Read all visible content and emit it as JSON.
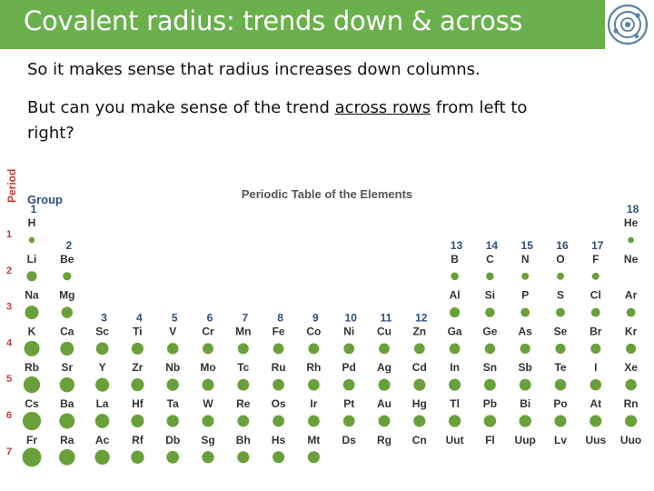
{
  "slide": {
    "title": "Covalent radius: trends down & across",
    "line1": "So it makes sense that radius increases down columns.",
    "line2_before": "But can you make sense of the trend ",
    "line2_underlined": "across rows",
    "line2_after": " from left to",
    "line3": "right?",
    "logo_icon": "atom-orbit-icon"
  },
  "periodic_table": {
    "title": "Periodic Table of the Elements",
    "period_axis_label": "Period",
    "group_axis_label": "Group",
    "period_numbers": [
      "1",
      "2",
      "3",
      "4",
      "5",
      "6",
      "7"
    ],
    "group_numbers": [
      "1",
      "2",
      "3",
      "4",
      "5",
      "6",
      "7",
      "8",
      "9",
      "10",
      "11",
      "12",
      "13",
      "14",
      "15",
      "16",
      "17",
      "18"
    ],
    "dot_color": "#6aa03a",
    "group_label_color": "#2e4f7e",
    "elements": [
      {
        "symbol": "H",
        "group": 1,
        "period": 1,
        "size": 0.2
      },
      {
        "symbol": "He",
        "group": 18,
        "period": 1,
        "size": 0.2
      },
      {
        "symbol": "Li",
        "group": 1,
        "period": 2,
        "size": 0.55
      },
      {
        "symbol": "Be",
        "group": 2,
        "period": 2,
        "size": 0.4
      },
      {
        "symbol": "B",
        "group": 13,
        "period": 2,
        "size": 0.35
      },
      {
        "symbol": "C",
        "group": 14,
        "period": 2,
        "size": 0.35
      },
      {
        "symbol": "N",
        "group": 15,
        "period": 2,
        "size": 0.3
      },
      {
        "symbol": "O",
        "group": 16,
        "period": 2,
        "size": 0.3
      },
      {
        "symbol": "F",
        "group": 17,
        "period": 2,
        "size": 0.3
      },
      {
        "symbol": "Ne",
        "group": 18,
        "period": 2,
        "size": 0
      },
      {
        "symbol": "Na",
        "group": 1,
        "period": 3,
        "size": 0.85
      },
      {
        "symbol": "Mg",
        "group": 2,
        "period": 3,
        "size": 0.65
      },
      {
        "symbol": "Al",
        "group": 13,
        "period": 3,
        "size": 0.55
      },
      {
        "symbol": "Si",
        "group": 14,
        "period": 3,
        "size": 0.5
      },
      {
        "symbol": "P",
        "group": 15,
        "period": 3,
        "size": 0.45
      },
      {
        "symbol": "S",
        "group": 16,
        "period": 3,
        "size": 0.45
      },
      {
        "symbol": "Cl",
        "group": 17,
        "period": 3,
        "size": 0.45
      },
      {
        "symbol": "Ar",
        "group": 18,
        "period": 3,
        "size": 0.45
      },
      {
        "symbol": "K",
        "group": 1,
        "period": 4,
        "size": 1.0
      },
      {
        "symbol": "Ca",
        "group": 2,
        "period": 4,
        "size": 0.85
      },
      {
        "symbol": "Sc",
        "group": 3,
        "period": 4,
        "size": 0.75
      },
      {
        "symbol": "Ti",
        "group": 4,
        "period": 4,
        "size": 0.7
      },
      {
        "symbol": "V",
        "group": 5,
        "period": 4,
        "size": 0.65
      },
      {
        "symbol": "Cr",
        "group": 6,
        "period": 4,
        "size": 0.62
      },
      {
        "symbol": "Mn",
        "group": 7,
        "period": 4,
        "size": 0.62
      },
      {
        "symbol": "Fe",
        "group": 8,
        "period": 4,
        "size": 0.6
      },
      {
        "symbol": "Co",
        "group": 9,
        "period": 4,
        "size": 0.6
      },
      {
        "symbol": "Ni",
        "group": 10,
        "period": 4,
        "size": 0.6
      },
      {
        "symbol": "Cu",
        "group": 11,
        "period": 4,
        "size": 0.6
      },
      {
        "symbol": "Zn",
        "group": 12,
        "period": 4,
        "size": 0.6
      },
      {
        "symbol": "Ga",
        "group": 13,
        "period": 4,
        "size": 0.6
      },
      {
        "symbol": "Ge",
        "group": 14,
        "period": 4,
        "size": 0.58
      },
      {
        "symbol": "As",
        "group": 15,
        "period": 4,
        "size": 0.55
      },
      {
        "symbol": "Se",
        "group": 16,
        "period": 4,
        "size": 0.55
      },
      {
        "symbol": "Br",
        "group": 17,
        "period": 4,
        "size": 0.55
      },
      {
        "symbol": "Kr",
        "group": 18,
        "period": 4,
        "size": 0.55
      },
      {
        "symbol": "Rb",
        "group": 1,
        "period": 5,
        "size": 1.1
      },
      {
        "symbol": "Sr",
        "group": 2,
        "period": 5,
        "size": 0.95
      },
      {
        "symbol": "Y",
        "group": 3,
        "period": 5,
        "size": 0.85
      },
      {
        "symbol": "Zr",
        "group": 4,
        "period": 5,
        "size": 0.78
      },
      {
        "symbol": "Nb",
        "group": 5,
        "period": 5,
        "size": 0.72
      },
      {
        "symbol": "Mo",
        "group": 6,
        "period": 5,
        "size": 0.7
      },
      {
        "symbol": "Tc",
        "group": 7,
        "period": 5,
        "size": 0.68
      },
      {
        "symbol": "Ru",
        "group": 8,
        "period": 5,
        "size": 0.67
      },
      {
        "symbol": "Rh",
        "group": 9,
        "period": 5,
        "size": 0.67
      },
      {
        "symbol": "Pd",
        "group": 10,
        "period": 5,
        "size": 0.67
      },
      {
        "symbol": "Ag",
        "group": 11,
        "period": 5,
        "size": 0.7
      },
      {
        "symbol": "Cd",
        "group": 12,
        "period": 5,
        "size": 0.7
      },
      {
        "symbol": "In",
        "group": 13,
        "period": 5,
        "size": 0.7
      },
      {
        "symbol": "Sn",
        "group": 14,
        "period": 5,
        "size": 0.68
      },
      {
        "symbol": "Sb",
        "group": 15,
        "period": 5,
        "size": 0.68
      },
      {
        "symbol": "Te",
        "group": 16,
        "period": 5,
        "size": 0.66
      },
      {
        "symbol": "I",
        "group": 17,
        "period": 5,
        "size": 0.65
      },
      {
        "symbol": "Xe",
        "group": 18,
        "period": 5,
        "size": 0.65
      },
      {
        "symbol": "Cs",
        "group": 1,
        "period": 6,
        "size": 1.25
      },
      {
        "symbol": "Ba",
        "group": 2,
        "period": 6,
        "size": 1.0
      },
      {
        "symbol": "La",
        "group": 3,
        "period": 6,
        "size": 0.9
      },
      {
        "symbol": "Hf",
        "group": 4,
        "period": 6,
        "size": 0.78
      },
      {
        "symbol": "Ta",
        "group": 5,
        "period": 6,
        "size": 0.72
      },
      {
        "symbol": "W",
        "group": 6,
        "period": 6,
        "size": 0.7
      },
      {
        "symbol": "Re",
        "group": 7,
        "period": 6,
        "size": 0.68
      },
      {
        "symbol": "Os",
        "group": 8,
        "period": 6,
        "size": 0.67
      },
      {
        "symbol": "Ir",
        "group": 9,
        "period": 6,
        "size": 0.67
      },
      {
        "symbol": "Pt",
        "group": 10,
        "period": 6,
        "size": 0.67
      },
      {
        "symbol": "Au",
        "group": 11,
        "period": 6,
        "size": 0.68
      },
      {
        "symbol": "Hg",
        "group": 12,
        "period": 6,
        "size": 0.7
      },
      {
        "symbol": "Tl",
        "group": 13,
        "period": 6,
        "size": 0.72
      },
      {
        "symbol": "Pb",
        "group": 14,
        "period": 6,
        "size": 0.72
      },
      {
        "symbol": "Bi",
        "group": 15,
        "period": 6,
        "size": 0.72
      },
      {
        "symbol": "Po",
        "group": 16,
        "period": 6,
        "size": 0.7
      },
      {
        "symbol": "At",
        "group": 17,
        "period": 6,
        "size": 0.7
      },
      {
        "symbol": "Rn",
        "group": 18,
        "period": 6,
        "size": 0.7
      },
      {
        "symbol": "Fr",
        "group": 1,
        "period": 7,
        "size": 1.3
      },
      {
        "symbol": "Ra",
        "group": 2,
        "period": 7,
        "size": 1.05
      },
      {
        "symbol": "Ac",
        "group": 3,
        "period": 7,
        "size": 0.95
      },
      {
        "symbol": "Rf",
        "group": 4,
        "period": 7,
        "size": 0.8
      },
      {
        "symbol": "Db",
        "group": 5,
        "period": 7,
        "size": 0.75
      },
      {
        "symbol": "Sg",
        "group": 6,
        "period": 7,
        "size": 0.72
      },
      {
        "symbol": "Bh",
        "group": 7,
        "period": 7,
        "size": 0.7
      },
      {
        "symbol": "Hs",
        "group": 8,
        "period": 7,
        "size": 0.7
      },
      {
        "symbol": "Mt",
        "group": 9,
        "period": 7,
        "size": 0.7
      },
      {
        "symbol": "Ds",
        "group": 10,
        "period": 7,
        "size": 0
      },
      {
        "symbol": "Rg",
        "group": 11,
        "period": 7,
        "size": 0
      },
      {
        "symbol": "Cn",
        "group": 12,
        "period": 7,
        "size": 0
      },
      {
        "symbol": "Uut",
        "group": 13,
        "period": 7,
        "size": 0
      },
      {
        "symbol": "Fl",
        "group": 14,
        "period": 7,
        "size": 0
      },
      {
        "symbol": "Uup",
        "group": 15,
        "period": 7,
        "size": 0
      },
      {
        "symbol": "Lv",
        "group": 16,
        "period": 7,
        "size": 0
      },
      {
        "symbol": "Uus",
        "group": 17,
        "period": 7,
        "size": 0
      },
      {
        "symbol": "Uuo",
        "group": 18,
        "period": 7,
        "size": 0
      }
    ]
  }
}
